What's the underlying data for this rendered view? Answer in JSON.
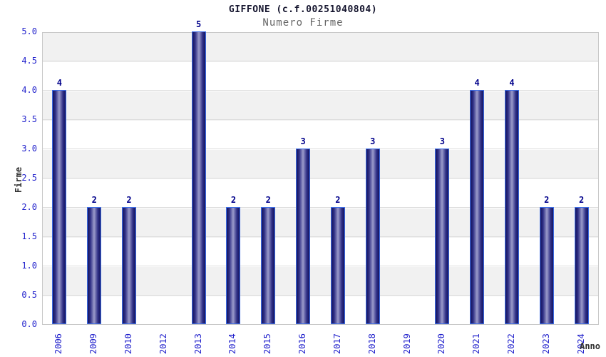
{
  "chart_data": {
    "type": "bar",
    "title": "GIFFONE (c.f.00251040804)",
    "subtitle": "Numero Firme",
    "xlabel": "Anno",
    "ylabel": "Firme",
    "categories": [
      "2006",
      "2009",
      "2010",
      "2012",
      "2013",
      "2014",
      "2015",
      "2016",
      "2017",
      "2018",
      "2019",
      "2020",
      "2021",
      "2022",
      "2023",
      "2024"
    ],
    "values": [
      4,
      2,
      2,
      0,
      5,
      2,
      2,
      3,
      2,
      3,
      0,
      3,
      4,
      4,
      2,
      2
    ],
    "ylim": [
      0,
      5
    ],
    "ytick_step": 0.5,
    "ytick_labels": [
      "0.0",
      "0.5",
      "1.0",
      "1.5",
      "2.0",
      "2.5",
      "3.0",
      "3.5",
      "4.0",
      "4.5",
      "5.0"
    ],
    "grid": "on",
    "legend": "none",
    "bar_value_labels": true,
    "colors": {
      "bar_dark": "#14145f",
      "bar_mid": "#2e2e85",
      "bar_light": "#9b9bca",
      "bar_outline": "#3d6ee8",
      "tick_label": "#2222cc",
      "value_label": "#00008b",
      "title": "#15152e",
      "subtitle": "#666666",
      "axis_title": "#303030",
      "band_gray": "#f1f1f1",
      "gridline": "#dcdcdc",
      "plot_border": "#c8c8c8"
    }
  }
}
